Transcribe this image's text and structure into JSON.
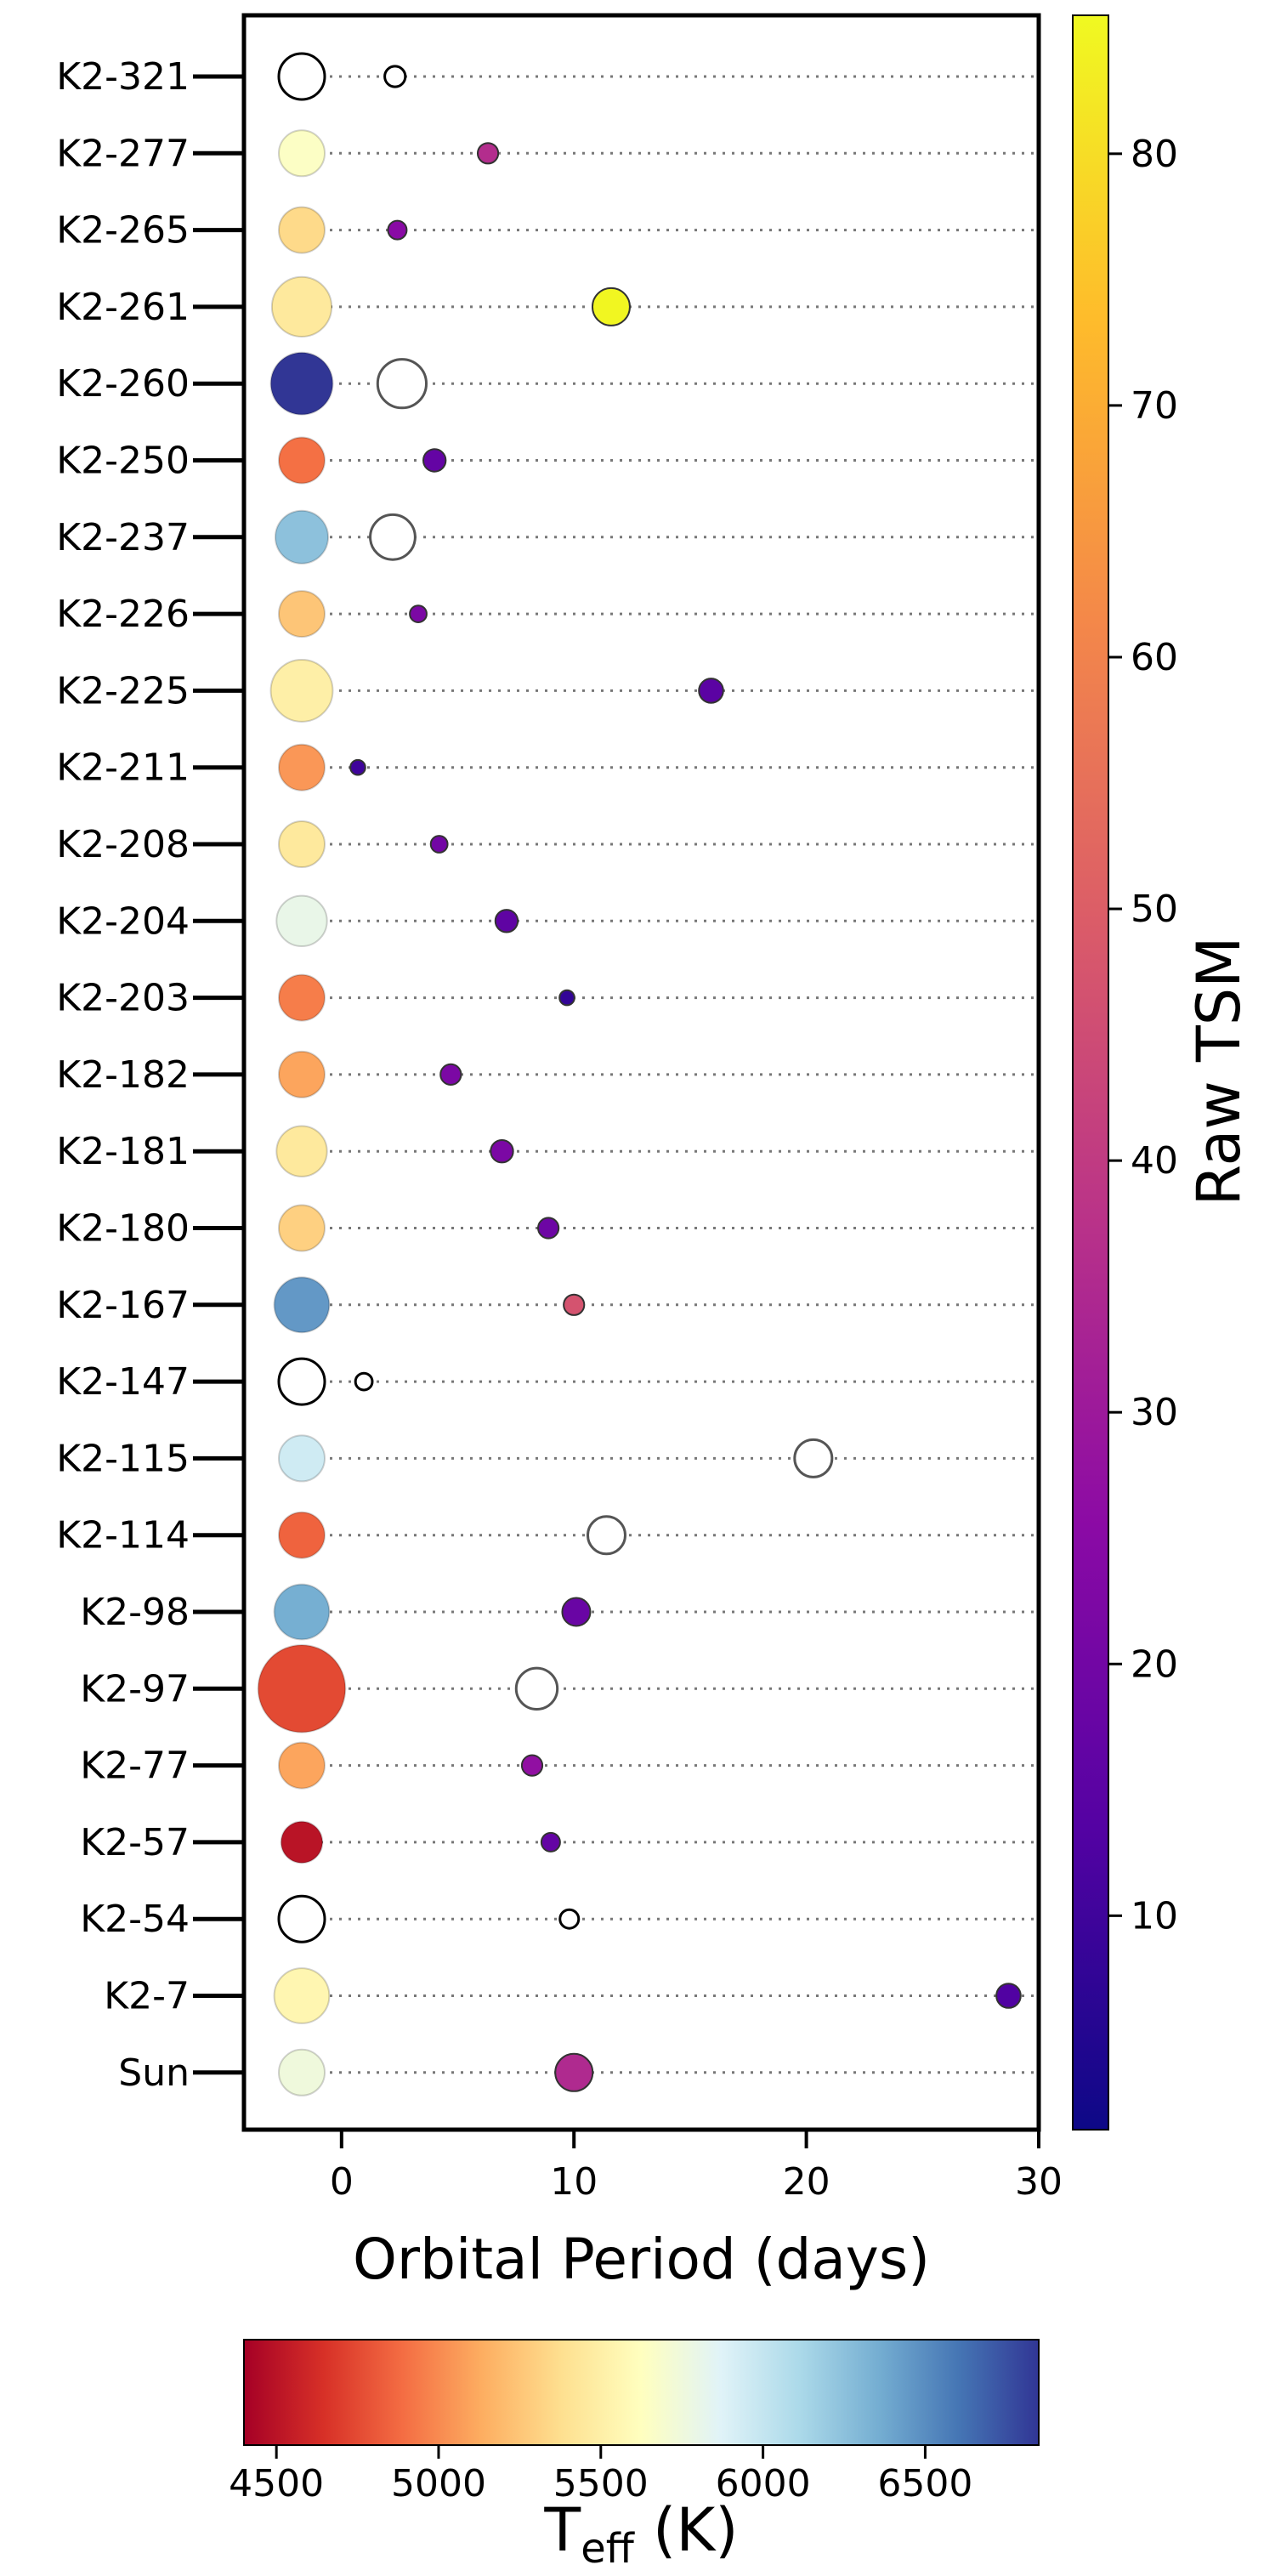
{
  "chart_data": {
    "type": "scatter",
    "xlabel": "Orbital Period (days)",
    "xlim": [
      -4.2,
      30
    ],
    "xticks": [
      0,
      10,
      20,
      30
    ],
    "systems": [
      {
        "name": "K2-321",
        "star_teff": null,
        "star_size": 1.0,
        "planet_period": 2.3,
        "planet_tsm": null,
        "planet_size": 0.55
      },
      {
        "name": "K2-277",
        "star_teff": 5650,
        "star_size": 1.0,
        "planet_period": 6.3,
        "planet_tsm": 36,
        "planet_size": 0.55
      },
      {
        "name": "K2-265",
        "star_teff": 5350,
        "star_size": 1.0,
        "planet_period": 2.4,
        "planet_tsm": 25,
        "planet_size": 0.5
      },
      {
        "name": "K2-261",
        "star_teff": 5450,
        "star_size": 1.3,
        "planet_period": 11.6,
        "planet_tsm": 85,
        "planet_size": 1.0
      },
      {
        "name": "K2-260",
        "star_teff": 6850,
        "star_size": 1.35,
        "planet_period": 2.6,
        "planet_tsm": null,
        "planet_size": 1.3
      },
      {
        "name": "K2-250",
        "star_teff": 4900,
        "star_size": 1.0,
        "planet_period": 4.0,
        "planet_tsm": 17,
        "planet_size": 0.6
      },
      {
        "name": "K2-237",
        "star_teff": 6250,
        "star_size": 1.15,
        "planet_period": 2.2,
        "planet_tsm": null,
        "planet_size": 1.2
      },
      {
        "name": "K2-226",
        "star_teff": 5250,
        "star_size": 1.0,
        "planet_period": 3.3,
        "planet_tsm": 22,
        "planet_size": 0.45
      },
      {
        "name": "K2-225",
        "star_teff": 5500,
        "star_size": 1.35,
        "planet_period": 15.9,
        "planet_tsm": 15,
        "planet_size": 0.65
      },
      {
        "name": "K2-211",
        "star_teff": 5050,
        "star_size": 1.0,
        "planet_period": 0.7,
        "planet_tsm": 10,
        "planet_size": 0.4
      },
      {
        "name": "K2-208",
        "star_teff": 5450,
        "star_size": 1.0,
        "planet_period": 4.2,
        "planet_tsm": 20,
        "planet_size": 0.45
      },
      {
        "name": "K2-204",
        "star_teff": 5800,
        "star_size": 1.1,
        "planet_period": 7.1,
        "planet_tsm": 16,
        "planet_size": 0.6
      },
      {
        "name": "K2-203",
        "star_teff": 4950,
        "star_size": 1.0,
        "planet_period": 9.7,
        "planet_tsm": 8,
        "planet_size": 0.4
      },
      {
        "name": "K2-182",
        "star_teff": 5100,
        "star_size": 1.0,
        "planet_period": 4.7,
        "planet_tsm": 22,
        "planet_size": 0.55
      },
      {
        "name": "K2-181",
        "star_teff": 5450,
        "star_size": 1.1,
        "planet_period": 6.9,
        "planet_tsm": 22,
        "planet_size": 0.6
      },
      {
        "name": "K2-180",
        "star_teff": 5300,
        "star_size": 1.0,
        "planet_period": 8.9,
        "planet_tsm": 19,
        "planet_size": 0.55
      },
      {
        "name": "K2-167",
        "star_teff": 6450,
        "star_size": 1.2,
        "planet_period": 10.0,
        "planet_tsm": 47,
        "planet_size": 0.55
      },
      {
        "name": "K2-147",
        "star_teff": null,
        "star_size": 1.0,
        "planet_period": 0.96,
        "planet_tsm": null,
        "planet_size": 0.45
      },
      {
        "name": "K2-115",
        "star_teff": 5950,
        "star_size": 1.0,
        "planet_period": 20.3,
        "planet_tsm": null,
        "planet_size": 1.0
      },
      {
        "name": "K2-114",
        "star_teff": 4850,
        "star_size": 1.0,
        "planet_period": 11.4,
        "planet_tsm": null,
        "planet_size": 1.0
      },
      {
        "name": "K2-98",
        "star_teff": 6350,
        "star_size": 1.2,
        "planet_period": 10.1,
        "planet_tsm": 18,
        "planet_size": 0.75
      },
      {
        "name": "K2-97",
        "star_teff": 4750,
        "star_size": 1.9,
        "planet_period": 8.4,
        "planet_tsm": null,
        "planet_size": 1.1
      },
      {
        "name": "K2-77",
        "star_teff": 5100,
        "star_size": 1.0,
        "planet_period": 8.2,
        "planet_tsm": 27,
        "planet_size": 0.55
      },
      {
        "name": "K2-57",
        "star_teff": 4500,
        "star_size": 0.9,
        "planet_period": 9.0,
        "planet_tsm": 17,
        "planet_size": 0.5
      },
      {
        "name": "K2-54",
        "star_teff": null,
        "star_size": 1.0,
        "planet_period": 9.8,
        "planet_tsm": null,
        "planet_size": 0.5
      },
      {
        "name": "K2-7",
        "star_teff": 5550,
        "star_size": 1.2,
        "planet_period": 28.7,
        "planet_tsm": 13,
        "planet_size": 0.65
      },
      {
        "name": "Sun",
        "star_teff": 5750,
        "star_size": 1.0,
        "planet_period": 10.0,
        "planet_tsm": 35,
        "planet_size": 1.0
      }
    ],
    "colorbar_tsm": {
      "label": "Raw TSM",
      "range": [
        1.5,
        85.5
      ],
      "ticks": [
        10,
        20,
        30,
        40,
        50,
        60,
        70,
        80
      ],
      "colormap": "plasma"
    },
    "colorbar_teff": {
      "label_main": "T",
      "label_sub": "eff",
      "label_unit": " (K)",
      "range": [
        4400,
        6850
      ],
      "ticks": [
        4500,
        5000,
        5500,
        6000,
        6500
      ],
      "colormap": "RdYlBu"
    }
  }
}
